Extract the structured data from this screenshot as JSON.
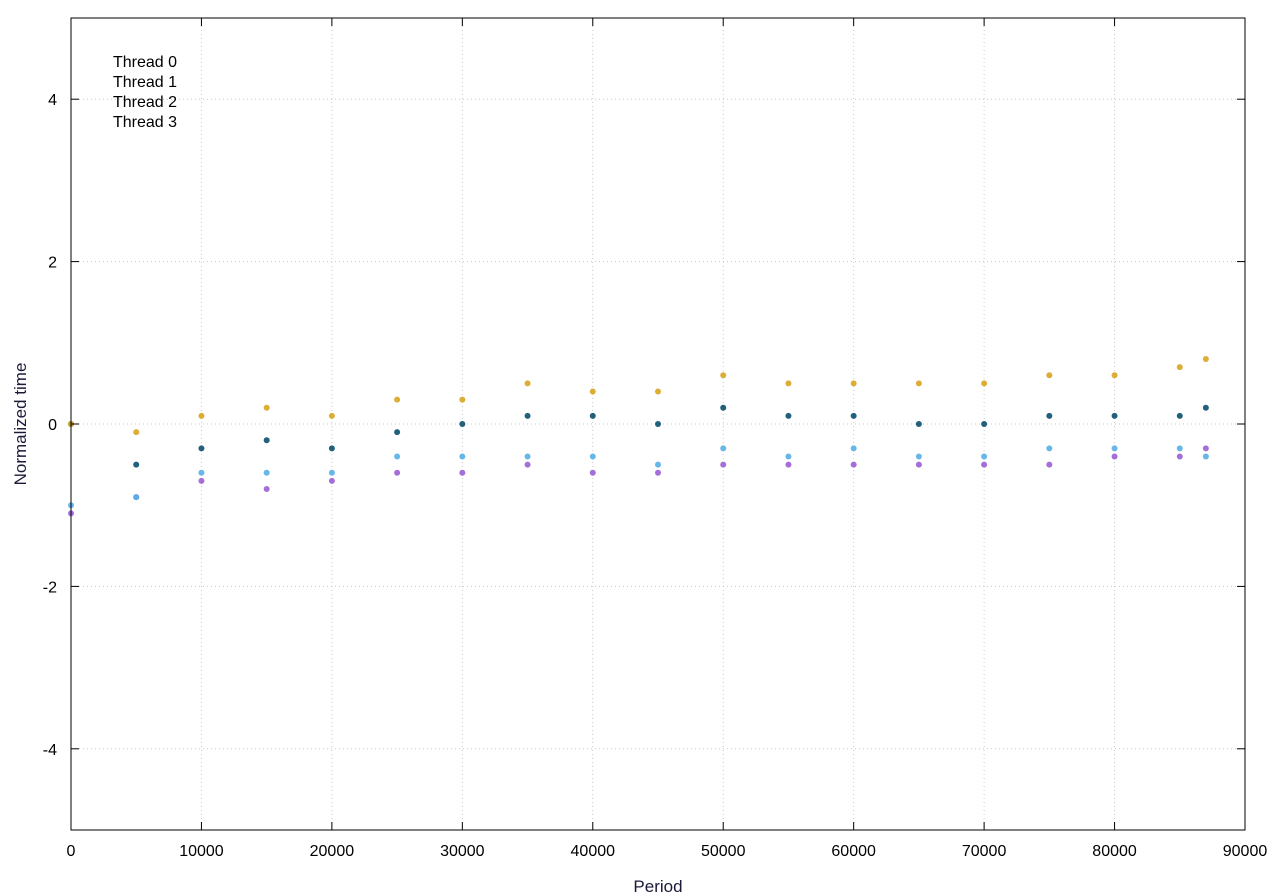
{
  "chart_data": {
    "type": "scatter",
    "title": "",
    "xlabel": "Period",
    "ylabel": "Normalized time",
    "xlim": [
      0,
      90000
    ],
    "ylim": [
      -5,
      5
    ],
    "x_ticks": [
      0,
      10000,
      20000,
      30000,
      40000,
      50000,
      60000,
      70000,
      80000,
      90000
    ],
    "y_ticks": [
      -4,
      -2,
      0,
      2,
      4
    ],
    "grid": true,
    "legend_position": "top-left",
    "series": [
      {
        "name": "Thread 0",
        "color": "#0a4f6e",
        "x": [
          0,
          5000,
          10000,
          15000,
          20000,
          25000,
          30000,
          35000,
          40000,
          45000,
          50000,
          55000,
          60000,
          65000,
          70000,
          75000,
          80000,
          85000,
          87000
        ],
        "y": [
          0.0,
          -0.5,
          -0.3,
          -0.2,
          -0.3,
          -0.1,
          0.0,
          0.1,
          0.1,
          0.0,
          0.2,
          0.1,
          0.1,
          0.0,
          0.0,
          0.1,
          0.1,
          0.1,
          0.2
        ]
      },
      {
        "name": "Thread 1",
        "color": "#9b5fd6",
        "x": [
          0,
          5000,
          10000,
          15000,
          20000,
          25000,
          30000,
          35000,
          40000,
          45000,
          50000,
          55000,
          60000,
          65000,
          70000,
          75000,
          80000,
          85000,
          87000
        ],
        "y": [
          -1.1,
          -0.9,
          -0.7,
          -0.8,
          -0.7,
          -0.6,
          -0.6,
          -0.5,
          -0.6,
          -0.6,
          -0.5,
          -0.5,
          -0.5,
          -0.5,
          -0.5,
          -0.5,
          -0.4,
          -0.4,
          -0.3
        ]
      },
      {
        "name": "Thread 2",
        "color": "#56b0e6",
        "x": [
          0,
          5000,
          10000,
          15000,
          20000,
          25000,
          30000,
          35000,
          40000,
          45000,
          50000,
          55000,
          60000,
          65000,
          70000,
          75000,
          80000,
          85000,
          87000
        ],
        "y": [
          -1.0,
          -0.9,
          -0.6,
          -0.6,
          -0.6,
          -0.4,
          -0.4,
          -0.4,
          -0.4,
          -0.5,
          -0.3,
          -0.4,
          -0.3,
          -0.4,
          -0.4,
          -0.3,
          -0.3,
          -0.3,
          -0.4
        ]
      },
      {
        "name": "Thread 3",
        "color": "#d9a520",
        "x": [
          0,
          5000,
          10000,
          15000,
          20000,
          25000,
          30000,
          35000,
          40000,
          45000,
          50000,
          55000,
          60000,
          65000,
          70000,
          75000,
          80000,
          85000,
          87000
        ],
        "y": [
          0.0,
          -0.1,
          0.1,
          0.2,
          0.1,
          0.3,
          0.3,
          0.5,
          0.4,
          0.4,
          0.6,
          0.5,
          0.5,
          0.5,
          0.5,
          0.6,
          0.6,
          0.7,
          0.8
        ]
      }
    ]
  }
}
